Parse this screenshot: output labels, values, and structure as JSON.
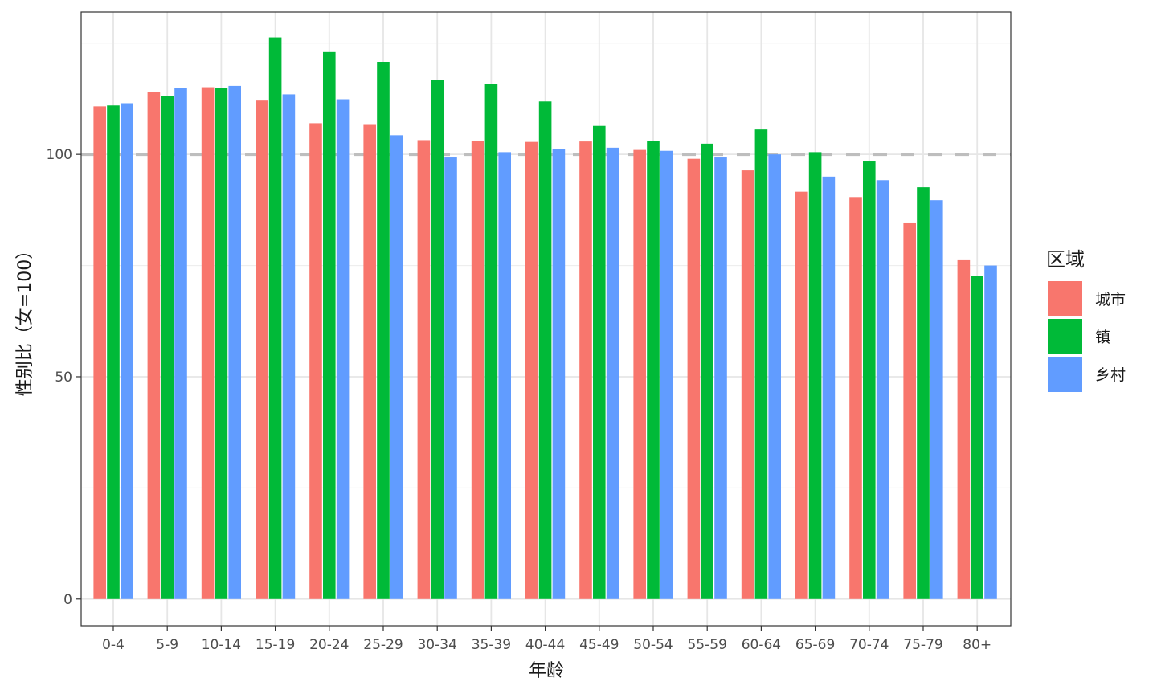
{
  "chart_data": {
    "type": "bar",
    "xlabel": "年龄",
    "ylabel": "性别比（女=100）",
    "ylim": [
      -6,
      132
    ],
    "yticks": [
      0,
      50,
      100
    ],
    "reference_line": 100,
    "grid": true,
    "legend_title": "区域",
    "legend_position": "right",
    "categories": [
      "0-4",
      "5-9",
      "10-14",
      "15-19",
      "20-24",
      "25-29",
      "30-34",
      "35-39",
      "40-44",
      "45-49",
      "50-54",
      "55-59",
      "60-64",
      "65-69",
      "70-74",
      "75-79",
      "80+"
    ],
    "series": [
      {
        "name": "城市",
        "color": "#F8766D",
        "values": [
          110.8,
          114.0,
          115.1,
          112.1,
          107.0,
          106.8,
          103.2,
          103.1,
          102.8,
          102.9,
          101.0,
          99.0,
          96.4,
          91.6,
          90.4,
          84.5,
          76.2
        ]
      },
      {
        "name": "镇",
        "color": "#00BA38",
        "values": [
          111.0,
          113.1,
          115.0,
          126.3,
          123.0,
          120.8,
          116.7,
          115.8,
          111.9,
          106.4,
          103.0,
          102.4,
          105.6,
          100.5,
          98.4,
          92.6,
          72.7
        ]
      },
      {
        "name": "乡村",
        "color": "#619CFF",
        "values": [
          111.5,
          115.0,
          115.4,
          113.5,
          112.4,
          104.3,
          99.3,
          100.5,
          101.2,
          101.5,
          100.8,
          99.3,
          100.0,
          95.0,
          94.2,
          89.7,
          75.0
        ]
      }
    ]
  }
}
